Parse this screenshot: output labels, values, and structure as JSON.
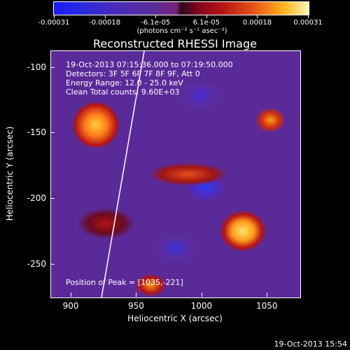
{
  "colorbar": {
    "ticks": [
      "-0.00031",
      "-0.00018",
      "-6.1e-05",
      "6.1e-05",
      "0.00018",
      "0.00031"
    ],
    "units": "(photons cm⁻² s⁻¹ asec⁻²)"
  },
  "chart_data": {
    "type": "heatmap",
    "title": "Reconstructed RHESSI Image",
    "xlabel": "Heliocentric X (arcsec)",
    "ylabel": "Heliocentric Y (arcsec)",
    "xlim": [
      885,
      1075
    ],
    "ylim": [
      -275,
      -88
    ],
    "x_ticks": [
      900,
      950,
      1000,
      1050
    ],
    "y_ticks": [
      -100,
      -150,
      -200,
      -250
    ],
    "x_tick_labels": [
      "900",
      "950",
      "1000",
      "1050"
    ],
    "y_tick_labels": [
      "-100",
      "-150",
      "-200",
      "-250"
    ],
    "colorbar_range": [
      -0.00031,
      0.00031
    ],
    "peak": [
      1035,
      -221
    ],
    "annotations": [
      "19-Oct-2013 07:15:36.000 to 07:19:50.000",
      "Detectors: 3F 5F 6F 7F 8F 9F, Att 0",
      "Energy Range: 12.0 - 25.0 keV",
      "Clean     Total counts: 9.60E+03",
      "Position of Peak = [1035,-221]"
    ]
  },
  "timestamp": "19-Oct-2013 15:54"
}
